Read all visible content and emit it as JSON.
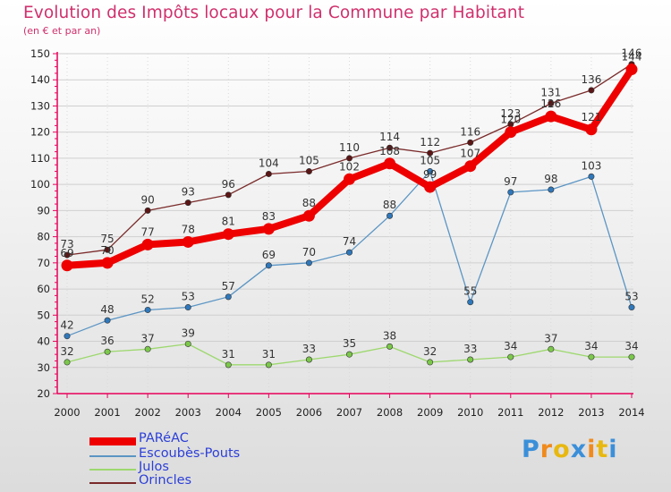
{
  "title": "Evolution des Impôts locaux pour la Commune par Habitant",
  "subtitle": "(en € et par an)",
  "logo": {
    "text": "Proxiti",
    "letters": [
      "P",
      "r",
      "o",
      "x",
      "i",
      "t",
      "i"
    ],
    "colors": [
      "#3b8fd9",
      "#f08a1c",
      "#e8b810",
      "#3b8fd9",
      "#f08a1c",
      "#e8b810",
      "#3b8fd9"
    ]
  },
  "chart_data": {
    "type": "line",
    "title": "Evolution des Impôts locaux pour la Commune par Habitant",
    "subtitle": "(en € et par an)",
    "xlabel": "",
    "ylabel": "",
    "x": [
      2000,
      2001,
      2002,
      2003,
      2004,
      2005,
      2006,
      2007,
      2008,
      2009,
      2010,
      2011,
      2012,
      2013,
      2014
    ],
    "ylim": [
      20,
      150
    ],
    "yticks": [
      20,
      30,
      40,
      50,
      60,
      70,
      80,
      90,
      100,
      110,
      120,
      130,
      140,
      150
    ],
    "grid": true,
    "legend_position": "bottom-left",
    "series": [
      {
        "name": "Orincles",
        "color": "#7a2a2a",
        "marker": "#5c1515",
        "width": 1.3,
        "radius": 3.2,
        "values": [
          73,
          75,
          90,
          93,
          96,
          104,
          105,
          110,
          114,
          112,
          116,
          123,
          131,
          136,
          146
        ],
        "labels": [
          "73",
          "75",
          "90",
          "93",
          "96",
          "104",
          "105",
          "110",
          "114",
          "112",
          "116",
          "123",
          "131",
          "136",
          "146"
        ]
      },
      {
        "name": "Escoubès-Pouts",
        "color": "#5b95c4",
        "marker": "#2f78bb",
        "width": 1.3,
        "radius": 3.2,
        "values": [
          42,
          48,
          52,
          53,
          57,
          69,
          70,
          74,
          88,
          105,
          55,
          97,
          98,
          103,
          53
        ],
        "labels": [
          "42",
          "48",
          "52",
          "53",
          "57",
          "69",
          "70",
          "74",
          "88",
          "105",
          "55",
          "97",
          "98",
          "103",
          "53"
        ]
      },
      {
        "name": "Julos",
        "color": "#9dd86e",
        "marker": "#7bc84a",
        "width": 1.3,
        "radius": 3.2,
        "values": [
          32,
          36,
          37,
          39,
          31,
          31,
          33,
          35,
          38,
          32,
          33,
          34,
          37,
          34,
          34
        ],
        "labels": [
          "32",
          "36",
          "37",
          "39",
          "31",
          "31",
          "33",
          "35",
          "38",
          "32",
          "33",
          "34",
          "37",
          "34",
          "34"
        ]
      },
      {
        "name": "PARéAC",
        "color": "#ee0000",
        "marker": "#ee0000",
        "width": 8,
        "radius": 6.5,
        "values": [
          69,
          70,
          77,
          78,
          81,
          83,
          88,
          102,
          108,
          99,
          107,
          120,
          126,
          121,
          144
        ],
        "labels": [
          "69",
          "70",
          "77",
          "78",
          "81",
          "83",
          "88",
          "102",
          "108",
          "99",
          "107",
          "120",
          "126",
          "121",
          "144"
        ]
      }
    ]
  },
  "legend": [
    {
      "label": "PARéAC",
      "color": "#ee0000",
      "thickness": 9
    },
    {
      "label": "Escoubès-Pouts",
      "color": "#5b95c4",
      "thickness": 2
    },
    {
      "label": "Julos",
      "color": "#9dd86e",
      "thickness": 2
    },
    {
      "label": "Orincles",
      "color": "#7a2a2a",
      "thickness": 2
    }
  ]
}
